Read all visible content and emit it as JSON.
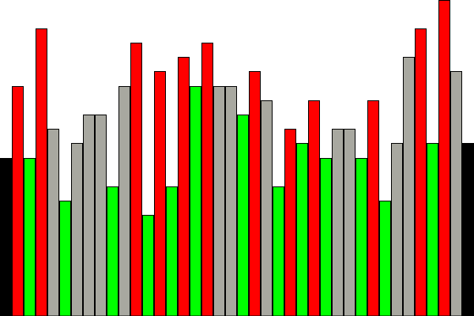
{
  "chart_data": {
    "type": "bar",
    "title": "",
    "xlabel": "",
    "ylabel": "",
    "ylim": [
      0,
      400
    ],
    "grid": false,
    "legend": "none",
    "colors": {
      "red": "#ff0000",
      "green": "#00ff00",
      "gray": "#a8a8a0",
      "black": "#000000",
      "outline": "#000000"
    },
    "bars": [
      {
        "value": 200,
        "color": "black"
      },
      {
        "value": 291,
        "color": "red"
      },
      {
        "value": 200,
        "color": "green"
      },
      {
        "value": 364,
        "color": "red"
      },
      {
        "value": 237,
        "color": "gray"
      },
      {
        "value": 146,
        "color": "green"
      },
      {
        "value": 219,
        "color": "gray"
      },
      {
        "value": 255,
        "color": "gray"
      },
      {
        "value": 255,
        "color": "gray"
      },
      {
        "value": 164,
        "color": "green"
      },
      {
        "value": 291,
        "color": "gray"
      },
      {
        "value": 346,
        "color": "red"
      },
      {
        "value": 128,
        "color": "green"
      },
      {
        "value": 310,
        "color": "red"
      },
      {
        "value": 164,
        "color": "green"
      },
      {
        "value": 328,
        "color": "red"
      },
      {
        "value": 291,
        "color": "green"
      },
      {
        "value": 346,
        "color": "red"
      },
      {
        "value": 291,
        "color": "gray"
      },
      {
        "value": 291,
        "color": "gray"
      },
      {
        "value": 255,
        "color": "green"
      },
      {
        "value": 310,
        "color": "red"
      },
      {
        "value": 273,
        "color": "gray"
      },
      {
        "value": 164,
        "color": "green"
      },
      {
        "value": 237,
        "color": "red"
      },
      {
        "value": 219,
        "color": "green"
      },
      {
        "value": 273,
        "color": "red"
      },
      {
        "value": 200,
        "color": "green"
      },
      {
        "value": 237,
        "color": "gray"
      },
      {
        "value": 237,
        "color": "gray"
      },
      {
        "value": 200,
        "color": "green"
      },
      {
        "value": 273,
        "color": "red"
      },
      {
        "value": 146,
        "color": "green"
      },
      {
        "value": 219,
        "color": "gray"
      },
      {
        "value": 328,
        "color": "gray"
      },
      {
        "value": 364,
        "color": "red"
      },
      {
        "value": 219,
        "color": "green"
      },
      {
        "value": 400,
        "color": "red"
      },
      {
        "value": 310,
        "color": "gray"
      },
      {
        "value": 219,
        "color": "black"
      }
    ]
  }
}
